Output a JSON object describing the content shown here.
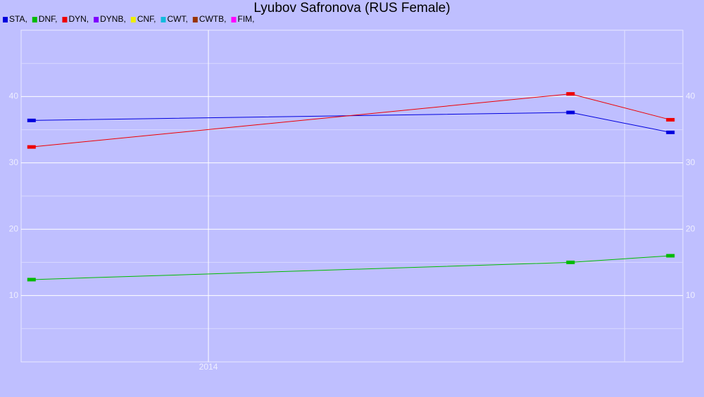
{
  "chart_data": {
    "type": "line",
    "title": "Lyubov Safronova (RUS Female)",
    "x": [
      2013.15,
      2015.74,
      2016.22
    ],
    "xlim": [
      2013.1,
      2016.28
    ],
    "xticks": [
      2014
    ],
    "x_unlabeled_ticks": [
      2016
    ],
    "ylim": [
      0,
      50
    ],
    "yticks": [
      10,
      20,
      30,
      40
    ],
    "y_minor_ticks": [
      5,
      15,
      25,
      35,
      45
    ],
    "right_axis_labels": true,
    "grid": true,
    "series": [
      {
        "name": "STA,",
        "color": "#0000dd",
        "values": [
          36.4,
          37.6,
          34.6
        ]
      },
      {
        "name": "DNF,",
        "color": "#00bb00",
        "values": [
          12.4,
          15.0,
          16.0
        ]
      },
      {
        "name": "DYN,",
        "color": "#ee0000",
        "values": [
          32.4,
          40.4,
          36.5
        ]
      },
      {
        "name": "DYNB,",
        "color": "#7f00ff",
        "values": [
          null,
          null,
          null
        ]
      },
      {
        "name": "CNF,",
        "color": "#eeee00",
        "values": [
          null,
          null,
          null
        ]
      },
      {
        "name": "CWT,",
        "color": "#11bbdd",
        "values": [
          null,
          null,
          null
        ]
      },
      {
        "name": "CWTB,",
        "color": "#993300",
        "values": [
          null,
          null,
          null
        ]
      },
      {
        "name": "FIM,",
        "color": "#ff00ff",
        "values": [
          null,
          null,
          null
        ]
      }
    ]
  }
}
